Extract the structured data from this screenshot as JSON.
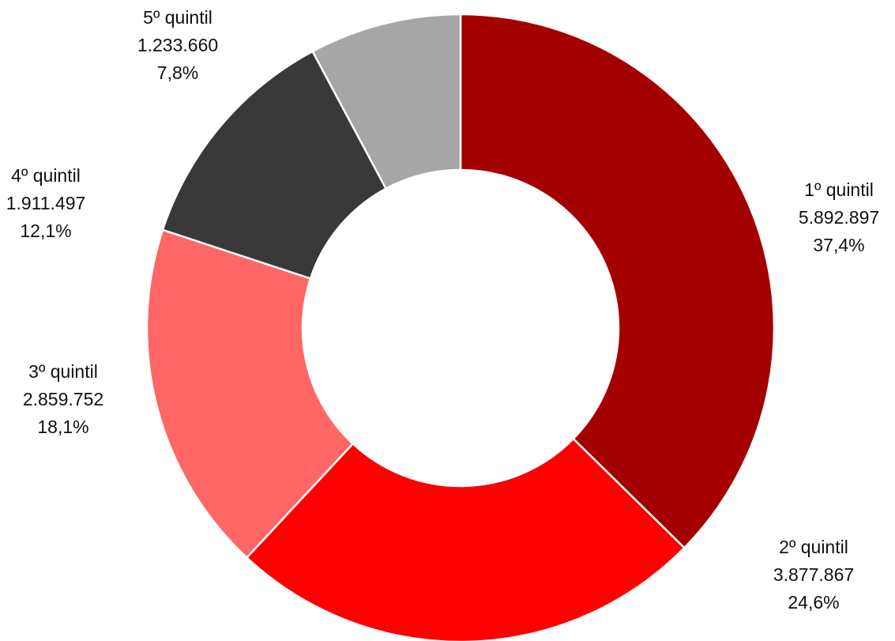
{
  "chart_data": {
    "type": "donut",
    "categories": [
      "1º quintil",
      "2º quintil",
      "3º quintil",
      "4º quintil",
      "5º quintil"
    ],
    "values": [
      5892897,
      3877867,
      2859752,
      1911497,
      1233660
    ],
    "value_labels": [
      "5.892.897",
      "3.877.867",
      "2.859.752",
      "1.911.497",
      "1.233.660"
    ],
    "percents": [
      37.4,
      24.6,
      18.1,
      12.1,
      7.8
    ],
    "percent_labels": [
      "37,4%",
      "24,6%",
      "18,1%",
      "12,1%",
      "7,8%"
    ],
    "colors": [
      "#a50000",
      "#ff0000",
      "#ff6666",
      "#393939",
      "#a6a6a6"
    ]
  }
}
